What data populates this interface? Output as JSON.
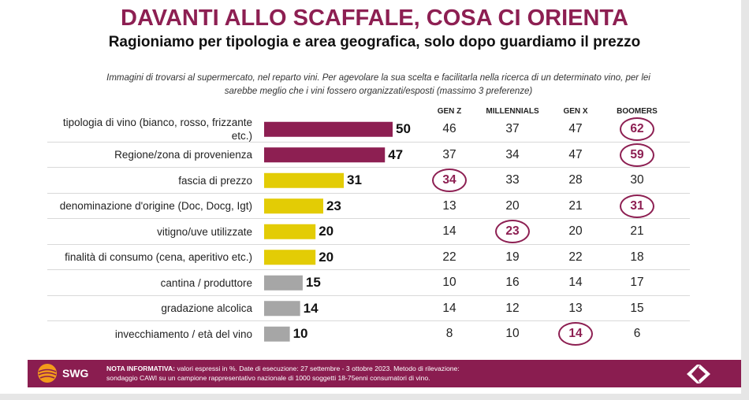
{
  "header": {
    "title": "DAVANTI ALLO SCAFFALE, COSA CI ORIENTA",
    "subtitle": "Ragioniamo per tipologia e area geografica, solo dopo guardiamo il prezzo",
    "question_line1": "Immagini di trovarsi al supermercato, nel reparto vini. Per agevolare la sua scelta e facilitarla nella ricerca di un determinato vino, per lei",
    "question_line2": "sarebbe meglio che i vini fossero organizzati/esposti (massimo 3 preferenze)"
  },
  "colors": {
    "purple": "#8d1f52",
    "yellow": "#e3cc05",
    "gray": "#a6a6a6",
    "footer": "#8a1d50"
  },
  "chart_data": {
    "type": "bar",
    "orientation": "horizontal",
    "xlim": [
      0,
      50
    ],
    "categories": [
      "tipologia di vino (bianco, rosso, frizzante etc.)",
      "Regione/zona di provenienza",
      "fascia di prezzo",
      "denominazione d'origine (Doc, Docg, Igt)",
      "vitigno/uve utilizzate",
      "finalità di consumo (cena, aperitivo etc.)",
      "cantina / produttore",
      "gradazione alcolica",
      "invecchiamento / età del vino"
    ],
    "label_lines": [
      [
        "tipologia di vino (bianco, rosso, frizzante",
        "etc.)"
      ],
      [
        "Regione/zona di provenienza"
      ],
      [
        "fascia di prezzo"
      ],
      [
        "denominazione d'origine (Doc, Docg, Igt)"
      ],
      [
        "vitigno/uve utilizzate"
      ],
      [
        "finalità di consumo (cena, aperitivo etc.)"
      ],
      [
        "cantina / produttore"
      ],
      [
        "gradazione alcolica"
      ],
      [
        "invecchiamento / età del vino"
      ]
    ],
    "values": [
      50,
      47,
      31,
      23,
      20,
      20,
      15,
      14,
      10
    ],
    "bar_groups": [
      "purple",
      "purple",
      "yellow",
      "yellow",
      "yellow",
      "yellow",
      "gray",
      "gray",
      "gray"
    ],
    "table": {
      "columns": [
        "GEN Z",
        "MILLENNIALS",
        "GEN X",
        "BOOMERS"
      ],
      "rows": [
        [
          46,
          37,
          47,
          62
        ],
        [
          37,
          34,
          47,
          59
        ],
        [
          34,
          33,
          28,
          30
        ],
        [
          13,
          20,
          21,
          31
        ],
        [
          14,
          23,
          20,
          21
        ],
        [
          22,
          19,
          22,
          18
        ],
        [
          10,
          16,
          14,
          17
        ],
        [
          14,
          12,
          13,
          15
        ],
        [
          8,
          10,
          14,
          6
        ]
      ],
      "highlighted": [
        [
          0,
          3
        ],
        [
          1,
          3
        ],
        [
          2,
          0
        ],
        [
          3,
          3
        ],
        [
          4,
          1
        ],
        [
          8,
          2
        ]
      ]
    }
  },
  "footer": {
    "brand": "SWG",
    "note_label": "NOTA INFORMATIVA:",
    "note_line1": "valori espressi in %. Date di esecuzione: 27 settembre - 3 ottobre 2023. Metodo di rilevazione:",
    "note_line2": "sondaggio CAWI su un campione rappresentativo nazionale di 1000 soggetti 18-75enni consumatori di vino.",
    "logo_icon": "carrefour-logo-icon",
    "swg_icon": "swg-globe-icon"
  }
}
